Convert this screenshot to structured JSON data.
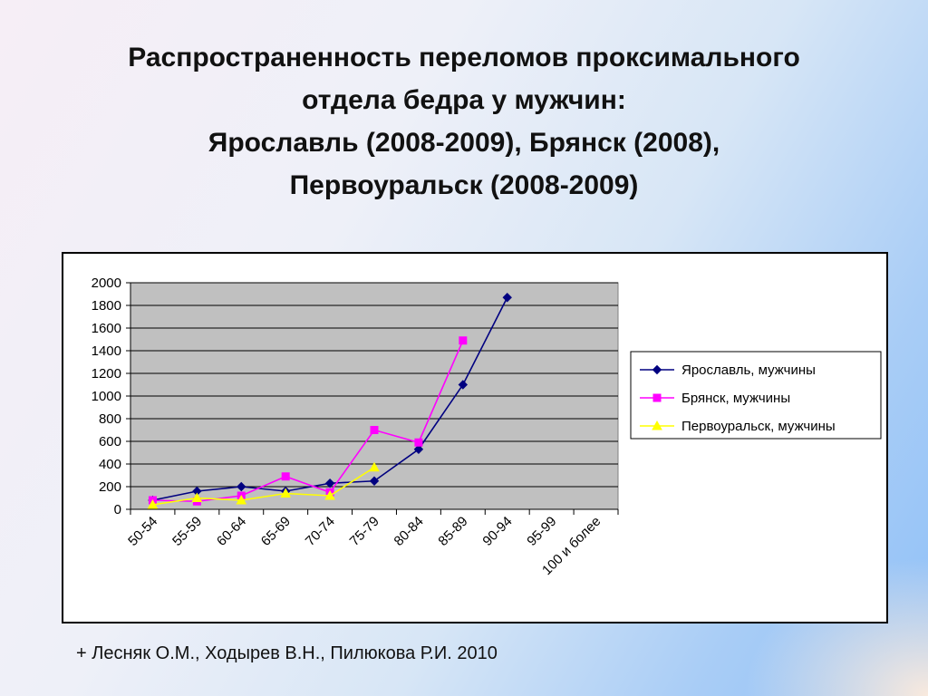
{
  "slide": {
    "title_lines": [
      "Распространенность переломов проксимального",
      "отдела бедра у мужчин:",
      "Ярославль (2008-2009), Брянск (2008),",
      "Первоуральск (2008-2009)"
    ],
    "source": "+ Лесняк О.М., Ходырев В.Н., Пилюкова Р.И. 2010"
  },
  "chart_data": {
    "type": "line",
    "title": "",
    "xlabel": "",
    "ylabel": "",
    "categories": [
      "50-54",
      "55-59",
      "60-64",
      "65-69",
      "70-74",
      "75-79",
      "80-84",
      "85-89",
      "90-94",
      "95-99",
      "100 и более"
    ],
    "ylim": [
      0,
      2000
    ],
    "yticks": [
      0,
      200,
      400,
      600,
      800,
      1000,
      1200,
      1400,
      1600,
      1800,
      2000
    ],
    "grid": true,
    "plot_background": "#c0c0c0",
    "legend_position": "right",
    "series": [
      {
        "name": "Ярославль, мужчины",
        "color": "#000080",
        "marker": "diamond",
        "values": [
          80,
          160,
          200,
          160,
          230,
          250,
          530,
          1100,
          1870,
          null,
          null
        ]
      },
      {
        "name": "Брянск, мужчины",
        "color": "#ff00ff",
        "marker": "square",
        "values": [
          80,
          70,
          120,
          290,
          150,
          700,
          590,
          1490,
          null,
          null,
          null
        ]
      },
      {
        "name": "Первоуральск, мужчины",
        "color": "#ffff00",
        "marker": "triangle",
        "values": [
          40,
          100,
          80,
          140,
          120,
          370,
          null,
          null,
          null,
          null,
          null
        ]
      }
    ]
  }
}
